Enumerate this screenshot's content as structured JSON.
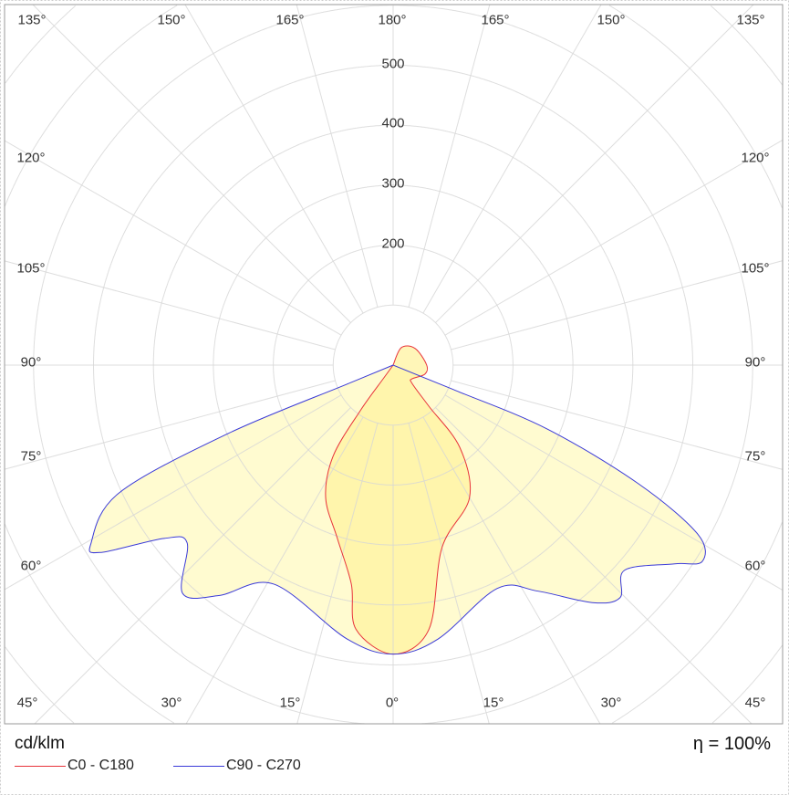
{
  "chart_data": {
    "type": "polar",
    "unit_label": "cd/klm",
    "efficiency_label": "η = 100%",
    "radial_ticks": [
      200,
      300,
      400,
      500
    ],
    "radial_grid": [
      100,
      200,
      300,
      400,
      500,
      600,
      700,
      800,
      900,
      1000
    ],
    "angle_grid_step_deg": 15,
    "angle_labels": {
      "top": [
        "135°",
        "150°",
        "165°",
        "180°",
        "165°",
        "150°",
        "135°"
      ],
      "left": [
        "120°",
        "105°",
        "90°",
        "75°",
        "60°"
      ],
      "right": [
        "120°",
        "105°",
        "90°",
        "75°",
        "60°"
      ],
      "bottom": [
        "45°",
        "30°",
        "15°",
        "0°",
        "15°",
        "30°",
        "45°"
      ]
    },
    "grid": true,
    "legend_placement": "bottom-left",
    "series": [
      {
        "name": "C0 - C180",
        "color": "#e8333a",
        "fill": "#fff3a0",
        "points": [
          [
            -36,
            28
          ],
          [
            -35.8,
            94
          ],
          [
            -33.4,
            182
          ],
          [
            -27,
            248
          ],
          [
            -17.8,
            304
          ],
          [
            -10.8,
            372
          ],
          [
            -8,
            445
          ],
          [
            0,
            482
          ],
          [
            7.7,
            445
          ],
          [
            15,
            315
          ],
          [
            30,
            255
          ],
          [
            39,
            177
          ],
          [
            41,
            91
          ],
          [
            46,
            44
          ],
          [
            54,
            39
          ],
          [
            74,
            55
          ],
          [
            90,
            56
          ],
          [
            127,
            46
          ],
          [
            155,
            32
          ]
        ]
      },
      {
        "name": "C90 - C270",
        "color": "#3a3ad8",
        "fill": "#fffbd0",
        "points": [
          [
            -67.6,
            84
          ],
          [
            -67.5,
            298
          ],
          [
            -65,
            505
          ],
          [
            -59.5,
            585
          ],
          [
            -57.4,
            580
          ],
          [
            -52.9,
            479
          ],
          [
            -49.2,
            454
          ],
          [
            -42.7,
            518
          ],
          [
            -37,
            481
          ],
          [
            -28.6,
            416
          ],
          [
            -9.6,
            463
          ],
          [
            0,
            482
          ],
          [
            9.3,
            463
          ],
          [
            25,
            411
          ],
          [
            32.7,
            448
          ],
          [
            40,
            517
          ],
          [
            44.3,
            542
          ],
          [
            48.5,
            516
          ],
          [
            54.8,
            575
          ],
          [
            57.6,
            611
          ],
          [
            61,
            581
          ],
          [
            64.2,
            455
          ],
          [
            67.5,
            278
          ],
          [
            67.9,
            113
          ]
        ]
      }
    ]
  }
}
